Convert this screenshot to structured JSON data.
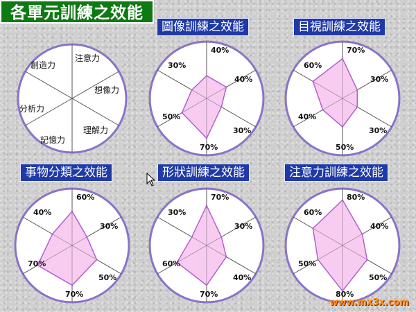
{
  "title": "各單元訓練之效能",
  "watermark": "www.mx3x.com",
  "legend": {
    "categories": [
      "注意力",
      "想像力",
      "理解力",
      "記憶力",
      "分析力",
      "創造力"
    ]
  },
  "colors": {
    "fill": "#f7c6ee",
    "stroke": "#b25fd0",
    "ring": "#8a73c8",
    "spoke": "#555555"
  },
  "chart_data": [
    {
      "type": "radar",
      "title": "圖像訓練之效能",
      "categories": [
        "注意力",
        "想像力",
        "理解力",
        "記憶力",
        "分析力",
        "創造力"
      ],
      "values": [
        40,
        40,
        30,
        70,
        50,
        30
      ],
      "value_labels": [
        "40%",
        "40%",
        "30%",
        "70%",
        "50%",
        "30%"
      ],
      "rlim": [
        0,
        100
      ]
    },
    {
      "type": "radar",
      "title": "目視訓練之效能",
      "categories": [
        "注意力",
        "想像力",
        "理解力",
        "記憶力",
        "分析力",
        "創造力"
      ],
      "values": [
        70,
        30,
        30,
        50,
        40,
        60
      ],
      "value_labels": [
        "70%",
        "30%",
        "30%",
        "50%",
        "40%",
        "60%"
      ],
      "rlim": [
        0,
        100
      ]
    },
    {
      "type": "radar",
      "title": "事物分類之效能",
      "categories": [
        "注意力",
        "想像力",
        "理解力",
        "記憶力",
        "分析力",
        "創造力"
      ],
      "values": [
        60,
        30,
        50,
        70,
        70,
        40
      ],
      "value_labels": [
        "60%",
        "30%",
        "50%",
        "70%",
        "70%",
        "40%"
      ],
      "rlim": [
        0,
        100
      ]
    },
    {
      "type": "radar",
      "title": "形狀訓練之效能",
      "categories": [
        "注意力",
        "想像力",
        "理解力",
        "記憶力",
        "分析力",
        "創造力"
      ],
      "values": [
        70,
        30,
        40,
        70,
        60,
        30
      ],
      "value_labels": [
        "70%",
        "30%",
        "40%",
        "70%",
        "60%",
        "30%"
      ],
      "rlim": [
        0,
        100
      ]
    },
    {
      "type": "radar",
      "title": "注意力訓練之效能",
      "categories": [
        "注意力",
        "想像力",
        "理解力",
        "記憶力",
        "分析力",
        "創造力"
      ],
      "values": [
        80,
        40,
        50,
        80,
        50,
        60
      ],
      "value_labels": [
        "80%",
        "40%",
        "50%",
        "80%",
        "50%",
        "60%"
      ],
      "rlim": [
        0,
        100
      ]
    }
  ]
}
